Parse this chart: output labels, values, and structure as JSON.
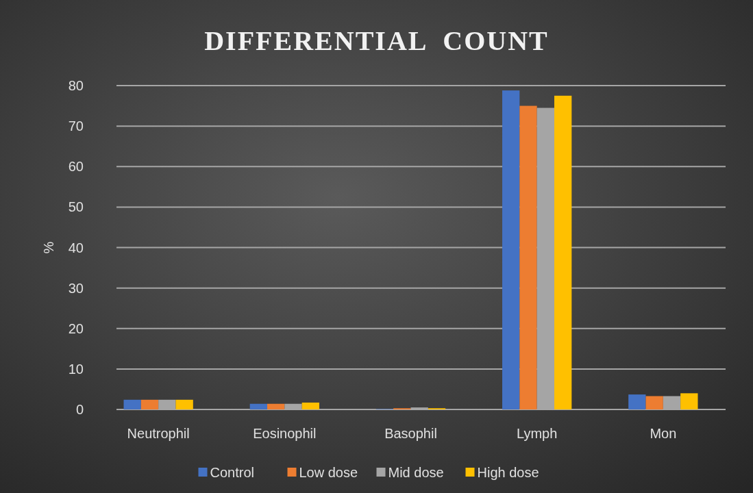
{
  "chart_data": {
    "type": "bar",
    "title": "DIFFERENTIAL  COUNT",
    "ylabel": "%",
    "categories": [
      "Neutrophil",
      "Eosinophil",
      "Basophil",
      "Lymph",
      "Mon"
    ],
    "series": [
      {
        "name": "Control",
        "color": "#4472c4",
        "values": [
          2.4,
          1.4,
          0.1,
          78.8,
          3.7
        ]
      },
      {
        "name": "Low dose",
        "color": "#ed7d31",
        "values": [
          2.4,
          1.4,
          0.3,
          75,
          3.3
        ]
      },
      {
        "name": "Mid dose",
        "color": "#a5a5a5",
        "values": [
          2.4,
          1.4,
          0.5,
          74.5,
          3.3
        ]
      },
      {
        "name": "High dose",
        "color": "#ffc000",
        "values": [
          2.4,
          1.7,
          0.3,
          77.5,
          4
        ]
      }
    ],
    "ylim": [
      0,
      80
    ],
    "yticks": [
      0,
      10,
      20,
      30,
      40,
      50,
      60,
      70,
      80
    ],
    "grid": "y",
    "legend": "bottom"
  }
}
